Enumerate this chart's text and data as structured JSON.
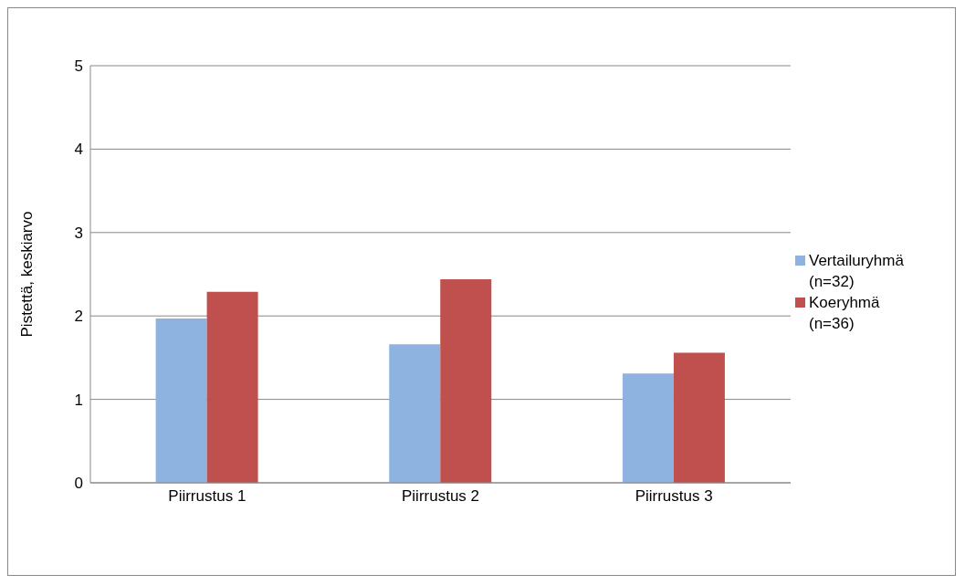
{
  "chart_data": {
    "type": "bar",
    "ylabel": "Pistettä, keskiarvo",
    "categories": [
      "Piirrustus 1",
      "Piirrustus 2",
      "Piirrustus 3"
    ],
    "series": [
      {
        "name": "Vertailuryhmä (n=32)",
        "color": "#8eb3e1",
        "values": [
          1.97,
          1.66,
          1.31
        ]
      },
      {
        "name": "Koeryhmä (n=36)",
        "color": "#c0504d",
        "values": [
          2.29,
          2.44,
          1.56
        ]
      }
    ],
    "ylim": [
      0,
      5
    ],
    "yticks": [
      0,
      1,
      2,
      3,
      4,
      5
    ],
    "grid": "y",
    "legend": "right"
  }
}
